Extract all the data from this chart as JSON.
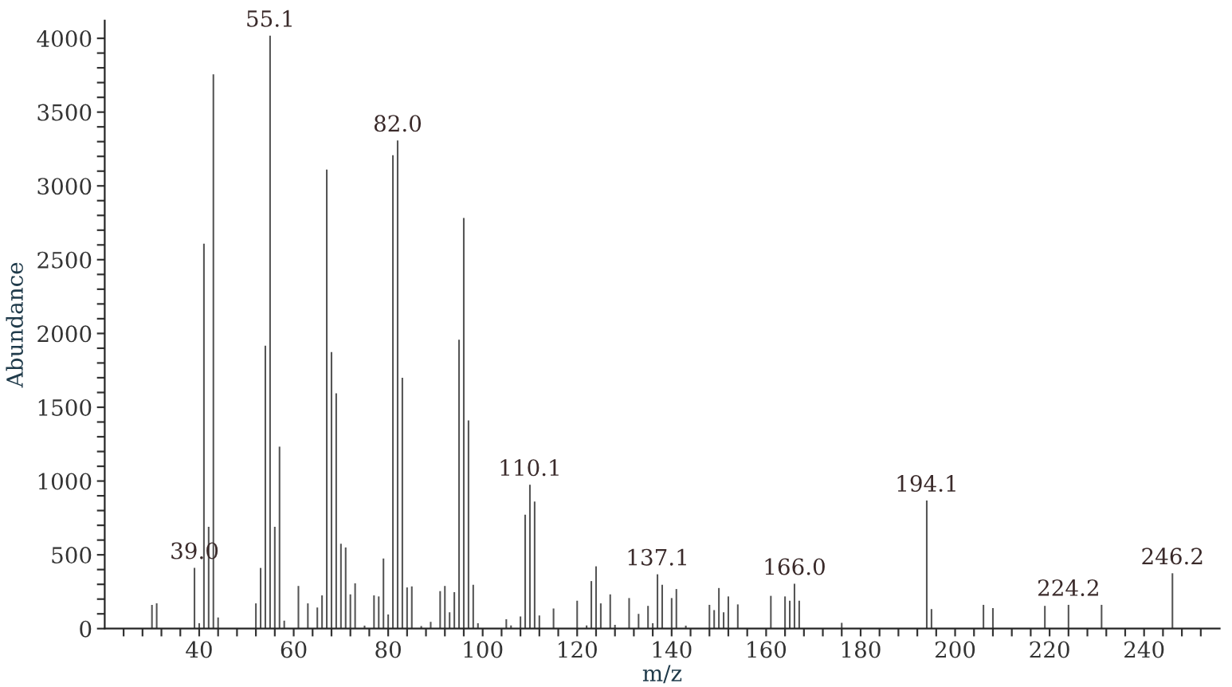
{
  "chart_data": {
    "type": "bar",
    "xlabel": "m/z",
    "ylabel": "Abundance",
    "color": "#555555",
    "x": [
      30,
      31,
      39,
      40,
      41,
      42,
      43,
      44,
      52,
      53,
      54,
      55,
      56,
      57,
      58,
      61,
      63,
      65,
      66,
      67,
      68,
      69,
      70,
      71,
      72,
      73,
      75,
      77,
      78,
      79,
      80,
      81,
      82,
      83,
      84,
      85,
      87,
      89,
      91,
      92,
      93,
      94,
      95,
      96,
      97,
      98,
      99,
      105,
      106,
      108,
      109,
      110,
      111,
      112,
      115,
      120,
      122,
      123,
      124,
      125,
      127,
      128,
      131,
      133,
      135,
      136,
      137,
      138,
      140,
      141,
      143,
      148,
      149,
      150,
      151,
      152,
      154,
      161,
      164,
      165,
      166,
      167,
      176,
      194,
      195,
      206,
      208,
      219,
      224,
      231,
      246
    ],
    "values": [
      161,
      171,
      412,
      36,
      2609,
      690,
      3756,
      75,
      171,
      411,
      1917,
      4018,
      690,
      1233,
      54,
      289,
      171,
      143,
      225,
      3111,
      1874,
      1594,
      575,
      550,
      232,
      307,
      20,
      225,
      218,
      475,
      96,
      3208,
      3308,
      1700,
      279,
      286,
      18,
      46,
      254,
      289,
      111,
      247,
      1958,
      2783,
      1411,
      297,
      36,
      64,
      21,
      82,
      772,
      975,
      861,
      89,
      136,
      189,
      21,
      322,
      422,
      171,
      232,
      25,
      207,
      100,
      154,
      36,
      368,
      297,
      207,
      268,
      20,
      161,
      125,
      275,
      111,
      218,
      164,
      222,
      218,
      189,
      304,
      189,
      39,
      868,
      132,
      161,
      139,
      154,
      161,
      161,
      375
    ],
    "xlim": [
      20,
      256
    ],
    "xticks": [
      {
        "value": 24,
        "label": null
      },
      {
        "value": 28,
        "label": null
      },
      {
        "value": 32,
        "label": null
      },
      {
        "value": 36,
        "label": null
      },
      40,
      {
        "value": 44,
        "label": null
      },
      {
        "value": 48,
        "label": null
      },
      {
        "value": 52,
        "label": null
      },
      {
        "value": 56,
        "label": null
      },
      60,
      {
        "value": 64,
        "label": null
      },
      {
        "value": 68,
        "label": null
      },
      {
        "value": 72,
        "label": null
      },
      {
        "value": 76,
        "label": null
      },
      80,
      {
        "value": 84,
        "label": null
      },
      {
        "value": 88,
        "label": null
      },
      {
        "value": 92,
        "label": null
      },
      {
        "value": 96,
        "label": null
      },
      100,
      {
        "value": 104,
        "label": null
      },
      {
        "value": 108,
        "label": null
      },
      {
        "value": 112,
        "label": null
      },
      {
        "value": 116,
        "label": null
      },
      120,
      {
        "value": 124,
        "label": null
      },
      {
        "value": 128,
        "label": null
      },
      {
        "value": 132,
        "label": null
      },
      {
        "value": 136,
        "label": null
      },
      140,
      {
        "value": 144,
        "label": null
      },
      {
        "value": 148,
        "label": null
      },
      {
        "value": 152,
        "label": null
      },
      {
        "value": 156,
        "label": null
      },
      160,
      {
        "value": 164,
        "label": null
      },
      {
        "value": 168,
        "label": null
      },
      {
        "value": 172,
        "label": null
      },
      {
        "value": 176,
        "label": null
      },
      180,
      {
        "value": 184,
        "label": null
      },
      {
        "value": 188,
        "label": null
      },
      {
        "value": 192,
        "label": null
      },
      {
        "value": 196,
        "label": null
      },
      200,
      {
        "value": 204,
        "label": null
      },
      {
        "value": 208,
        "label": null
      },
      {
        "value": 212,
        "label": null
      },
      {
        "value": 216,
        "label": null
      },
      220,
      {
        "value": 224,
        "label": null
      },
      {
        "value": 228,
        "label": null
      },
      {
        "value": 232,
        "label": null
      },
      {
        "value": 236,
        "label": null
      },
      240,
      {
        "value": 244,
        "label": null
      },
      {
        "value": 248,
        "label": null
      },
      {
        "value": 252,
        "label": null
      }
    ],
    "ylim": [
      0,
      4120
    ],
    "yticks": [
      0,
      {
        "value": 100,
        "label": null
      },
      {
        "value": 200,
        "label": null
      },
      {
        "value": 300,
        "label": null
      },
      {
        "value": 400,
        "label": null
      },
      500,
      {
        "value": 600,
        "label": null
      },
      {
        "value": 700,
        "label": null
      },
      {
        "value": 800,
        "label": null
      },
      {
        "value": 900,
        "label": null
      },
      1000,
      {
        "value": 1100,
        "label": null
      },
      {
        "value": 1200,
        "label": null
      },
      {
        "value": 1300,
        "label": null
      },
      {
        "value": 1400,
        "label": null
      },
      1500,
      {
        "value": 1600,
        "label": null
      },
      {
        "value": 1700,
        "label": null
      },
      {
        "value": 1800,
        "label": null
      },
      {
        "value": 1900,
        "label": null
      },
      2000,
      {
        "value": 2100,
        "label": null
      },
      {
        "value": 2200,
        "label": null
      },
      {
        "value": 2300,
        "label": null
      },
      {
        "value": 2400,
        "label": null
      },
      2500,
      {
        "value": 2600,
        "label": null
      },
      {
        "value": 2700,
        "label": null
      },
      {
        "value": 2800,
        "label": null
      },
      {
        "value": 2900,
        "label": null
      },
      3000,
      {
        "value": 3100,
        "label": null
      },
      {
        "value": 3200,
        "label": null
      },
      {
        "value": 3300,
        "label": null
      },
      {
        "value": 3400,
        "label": null
      },
      3500,
      {
        "value": 3600,
        "label": null
      },
      {
        "value": 3700,
        "label": null
      },
      {
        "value": 3800,
        "label": null
      },
      {
        "value": 3900,
        "label": null
      },
      4000
    ],
    "grid": false,
    "legend": false,
    "annotations": [
      {
        "text": "39.0",
        "x": 39,
        "y": 412
      },
      {
        "text": "55.1",
        "x": 55,
        "y": 4018
      },
      {
        "text": "82.0",
        "x": 82,
        "y": 3308
      },
      {
        "text": "110.1",
        "x": 110,
        "y": 975
      },
      {
        "text": "137.1",
        "x": 137,
        "y": 368
      },
      {
        "text": "166.0",
        "x": 166,
        "y": 304
      },
      {
        "text": "194.1",
        "x": 194,
        "y": 868
      },
      {
        "text": "224.2",
        "x": 224,
        "y": 161
      },
      {
        "text": "246.2",
        "x": 246,
        "y": 375
      }
    ]
  }
}
